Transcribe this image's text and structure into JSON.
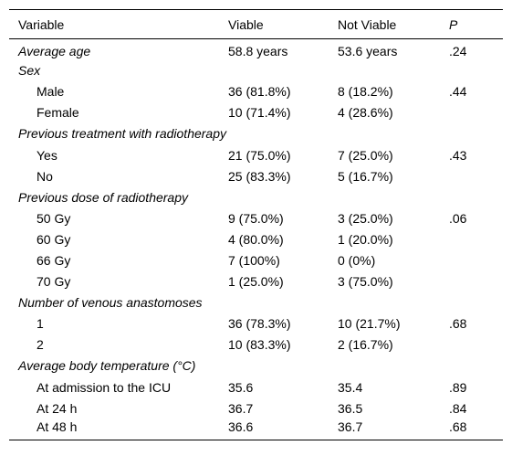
{
  "table": {
    "headers": [
      "Variable",
      "Viable",
      "Not Viable",
      "P"
    ],
    "rows": [
      {
        "type": "section",
        "label": "Average age",
        "viable": "58.8 years",
        "not_viable": "53.6 years",
        "p": ".24"
      },
      {
        "type": "section",
        "label": "Sex",
        "viable": "",
        "not_viable": "",
        "p": ""
      },
      {
        "type": "item",
        "label": "Male",
        "viable": "36 (81.8%)",
        "not_viable": "8 (18.2%)",
        "p": ".44"
      },
      {
        "type": "item",
        "label": "Female",
        "viable": "10 (71.4%)",
        "not_viable": "4 (28.6%)",
        "p": ""
      },
      {
        "type": "section",
        "label": "Previous treatment with radiotherapy",
        "viable": "",
        "not_viable": "",
        "p": ""
      },
      {
        "type": "item",
        "label": "Yes",
        "viable": "21 (75.0%)",
        "not_viable": "7 (25.0%)",
        "p": ".43"
      },
      {
        "type": "item",
        "label": "No",
        "viable": "25 (83.3%)",
        "not_viable": "5 (16.7%)",
        "p": ""
      },
      {
        "type": "section",
        "label": "Previous dose of radiotherapy",
        "viable": "",
        "not_viable": "",
        "p": ""
      },
      {
        "type": "item",
        "label": "50 Gy",
        "viable": "9 (75.0%)",
        "not_viable": "3 (25.0%)",
        "p": ".06"
      },
      {
        "type": "item",
        "label": "60 Gy",
        "viable": "4 (80.0%)",
        "not_viable": "1 (20.0%)",
        "p": ""
      },
      {
        "type": "item",
        "label": "66 Gy",
        "viable": "7 (100%)",
        "not_viable": "0 (0%)",
        "p": ""
      },
      {
        "type": "item",
        "label": "70 Gy",
        "viable": "1 (25.0%)",
        "not_viable": "3 (75.0%)",
        "p": ""
      },
      {
        "type": "section",
        "label": "Number of venous anastomoses",
        "viable": "",
        "not_viable": "",
        "p": ""
      },
      {
        "type": "item",
        "label": "1",
        "viable": "36 (78.3%)",
        "not_viable": "10 (21.7%)",
        "p": ".68"
      },
      {
        "type": "item",
        "label": "2",
        "viable": "10 (83.3%)",
        "not_viable": "2 (16.7%)",
        "p": ""
      },
      {
        "type": "section",
        "label": "Average body temperature (°C)",
        "viable": "",
        "not_viable": "",
        "p": ""
      },
      {
        "type": "item",
        "label": "At admission to the ICU",
        "viable": "35.6",
        "not_viable": "35.4",
        "p": ".89"
      },
      {
        "type": "item",
        "label": "At 24 h",
        "viable": "36.7",
        "not_viable": "36.5",
        "p": ".84"
      },
      {
        "type": "item",
        "label": "At 48 h",
        "viable": "36.6",
        "not_viable": "36.7",
        "p": ".68"
      }
    ]
  }
}
